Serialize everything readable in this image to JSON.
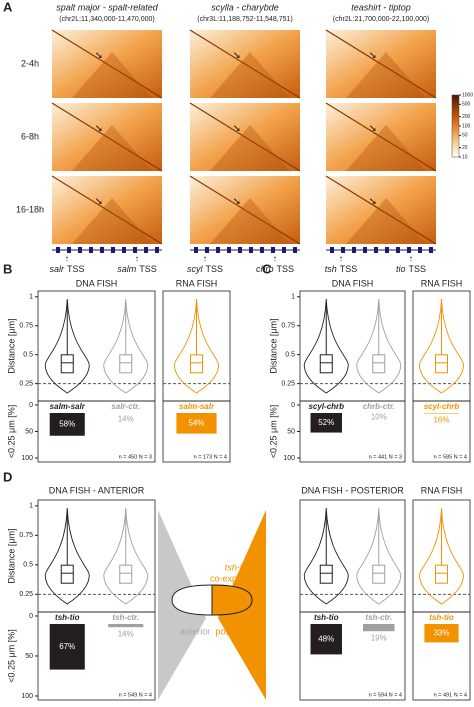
{
  "panel_a": {
    "letter": "A",
    "columns": [
      {
        "title": "spalt major - spalt-related",
        "coords": "(chr2L:11,340,000-11,470,000)",
        "genes": [
          "salr",
          "salm"
        ]
      },
      {
        "title": "scylla - charybde",
        "coords": "(chr3L:11,188,752-11,548,751)",
        "genes": [
          "scyl",
          "chrb"
        ]
      },
      {
        "title": "teashirt - tiptop",
        "coords": "(chr2L:21,700,000-22,100,000)",
        "genes": [
          "tsh",
          "tio"
        ]
      }
    ],
    "tss": "TSS",
    "rows": [
      "2-4h",
      "6-8h",
      "16-18h"
    ],
    "colorbar_lim": [
      10,
      1000
    ],
    "colorbar_ticks": [
      1000,
      500,
      200,
      100,
      50,
      20,
      10
    ]
  },
  "panels": [
    {
      "letter": "B",
      "y_label": "Distance [μm]",
      "ylim": [
        0.1,
        1.05
      ],
      "yticks": [
        1,
        0.75,
        0.5,
        0.25
      ],
      "bar_label": "<0.25 μm [%]",
      "bar_lim": [
        0,
        100
      ],
      "bar_ticks": [
        0,
        50,
        100
      ],
      "plots": [
        {
          "header": "DNA FISH",
          "n": "n = 450  N = 3",
          "groups": [
            {
              "name": "salm-salr",
              "color": "#231f20",
              "value": 58,
              "value_label": "58%"
            },
            {
              "name": "salr-ctr.",
              "color": "#a0a0a0",
              "value": 14,
              "value_label": "14%"
            }
          ]
        },
        {
          "header": "RNA FISH",
          "n": "n = 173  N = 4",
          "groups": [
            {
              "name": "salm-salr",
              "color": "#f39200",
              "value": 54,
              "value_label": "54%"
            }
          ]
        }
      ]
    },
    {
      "letter": "C",
      "y_label": "Distance [μm]",
      "ylim": [
        0.1,
        1.05
      ],
      "yticks": [
        1,
        0.75,
        0.5,
        0.25
      ],
      "bar_label": "<0.25 μm [%]",
      "bar_lim": [
        0,
        100
      ],
      "bar_ticks": [
        0,
        50,
        100
      ],
      "plots": [
        {
          "header": "DNA FISH",
          "n": "n = 441  N = 3",
          "groups": [
            {
              "name": "scyl-chrb",
              "color": "#231f20",
              "value": 52,
              "value_label": "52%"
            },
            {
              "name": "chrb-ctr.",
              "color": "#a0a0a0",
              "value": 10,
              "value_label": "10%"
            }
          ]
        },
        {
          "header": "RNA FISH",
          "n": "n = 585  N = 4",
          "groups": [
            {
              "name": "scyl-chrb",
              "color": "#f39200",
              "value": 16,
              "value_label": "16%"
            }
          ]
        }
      ]
    },
    {
      "letter": "D",
      "y_label": "Distance [μm]",
      "ylim": [
        0.1,
        1.05
      ],
      "yticks": [
        1,
        0.75,
        0.5,
        0.25
      ],
      "bar_label": "<0.25 μm [%]",
      "bar_lim": [
        0,
        100
      ],
      "bar_ticks": [
        0,
        50,
        100
      ],
      "plots": [
        {
          "header": "DNA FISH - ANTERIOR",
          "n": "n = 549  N = 4",
          "groups": [
            {
              "name": "tsh-tio",
              "color": "#231f20",
              "value": 67,
              "value_label": "67%"
            },
            {
              "name": "tsh-ctr.",
              "color": "#a0a0a0",
              "value": 14,
              "value_label": "14%"
            }
          ]
        },
        {
          "header": "DNA FISH - POSTERIOR",
          "n": "n = 594  N = 4",
          "groups": [
            {
              "name": "tsh-tio",
              "color": "#231f20",
              "value": 48,
              "value_label": "48%"
            },
            {
              "name": "tsh-ctr.",
              "color": "#a0a0a0",
              "value": 19,
              "value_label": "19%"
            }
          ]
        },
        {
          "header": "RNA FISH",
          "n": "n = 491  N = 4",
          "groups": [
            {
              "name": "tsh-tio",
              "color": "#f39200",
              "value": 33,
              "value_label": "33%"
            }
          ]
        }
      ]
    }
  ],
  "embryo": {
    "title": "tsh-tio",
    "subtitle": "co-expressed",
    "left": "anterior",
    "right": "posterior"
  }
}
